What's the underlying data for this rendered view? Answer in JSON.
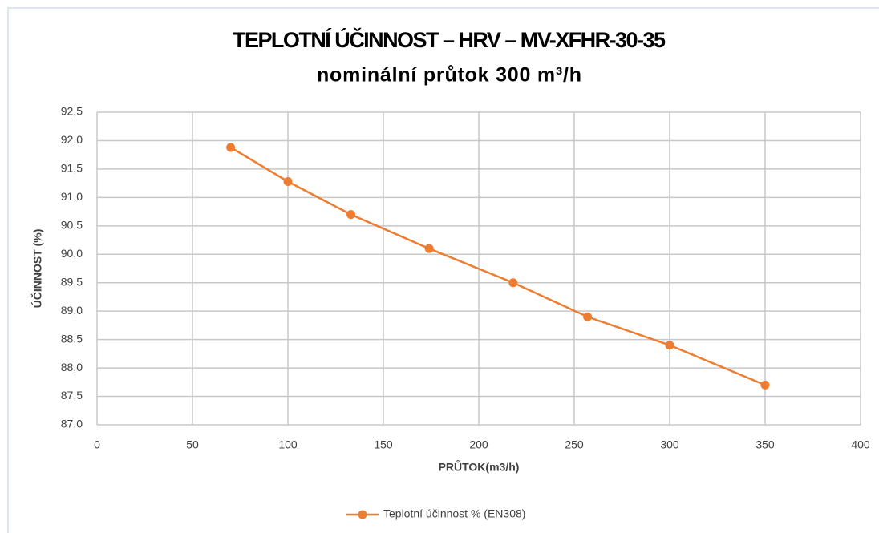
{
  "chart_data": {
    "type": "line",
    "title": "TEPLOTNÍ ÚČINNOST – HRV – MV-XFHR-30-35",
    "subtitle": "nominální průtok 300 m³/h",
    "x_label": "PRŮTOK(m3/h)",
    "y_label": "ÚČINNOST (%)",
    "x": [
      70,
      100,
      133,
      174,
      218,
      257,
      300,
      350
    ],
    "series": [
      {
        "name": "Teplotní účinnost % (EN308)",
        "color": "#ed7d31",
        "values": [
          91.88,
          91.28,
          90.7,
          90.1,
          89.5,
          88.9,
          88.4,
          87.7
        ]
      }
    ],
    "xlim": [
      0,
      400
    ],
    "xticks": [
      0,
      50,
      100,
      150,
      200,
      250,
      300,
      350,
      400
    ],
    "ylim": [
      87,
      92.5
    ],
    "yticks": [
      {
        "value": 87,
        "label": "87,0"
      },
      {
        "value": 87.5,
        "label": "87,5"
      },
      {
        "value": 88,
        "label": "88,0"
      },
      {
        "value": 88.5,
        "label": "88,5"
      },
      {
        "value": 89,
        "label": "89,0"
      },
      {
        "value": 89.5,
        "label": "89,5"
      },
      {
        "value": 90,
        "label": "90,0"
      },
      {
        "value": 90.5,
        "label": "90,5"
      },
      {
        "value": 91,
        "label": "91,0"
      },
      {
        "value": 91.5,
        "label": "91,5"
      },
      {
        "value": 92,
        "label": "92,0"
      },
      {
        "value": 92.5,
        "label": "92,5"
      }
    ],
    "grid": true,
    "legend": "bottom"
  }
}
